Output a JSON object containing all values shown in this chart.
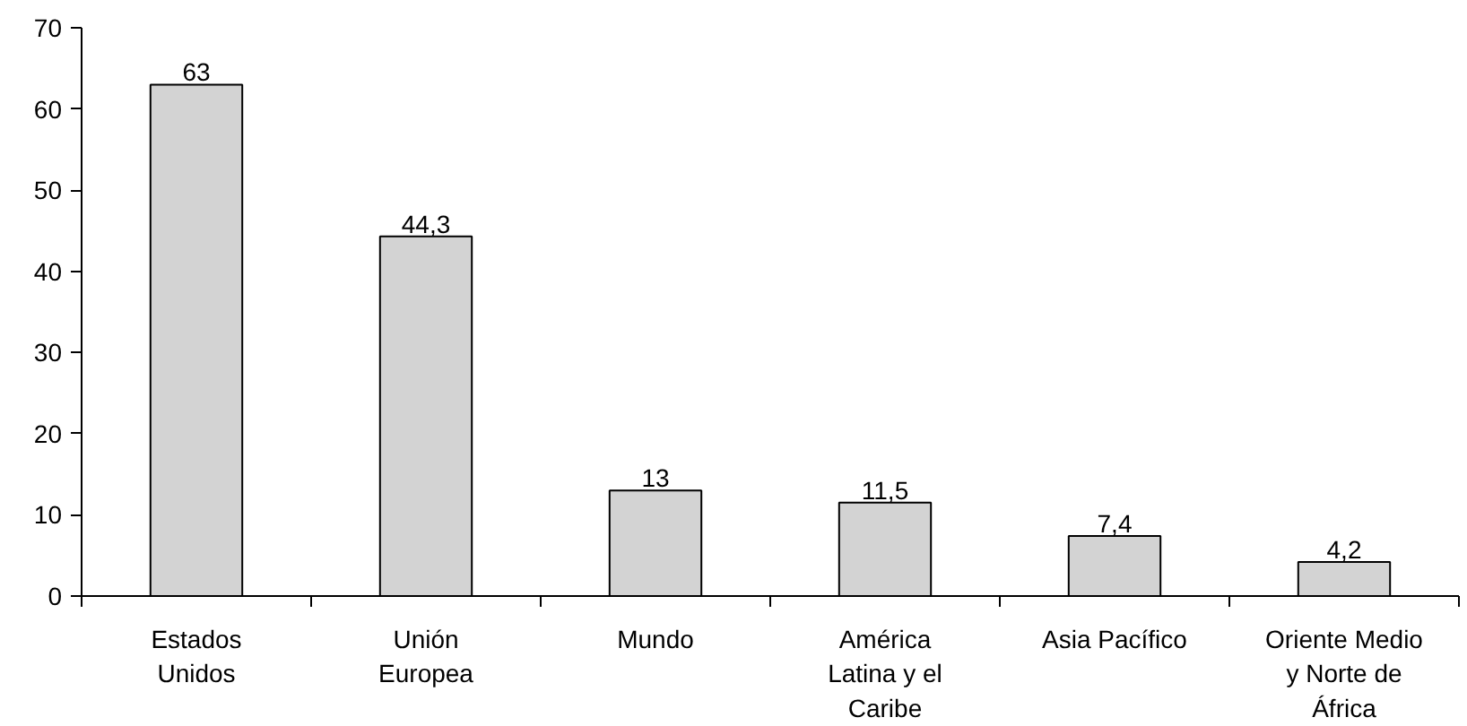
{
  "chart_data": {
    "type": "bar",
    "categories": [
      "Estados\nUnidos",
      "Unión\nEuropea",
      "Mundo",
      "América\nLatina y el\nCaribe",
      "Asia Pacífico",
      "Oriente Medio\ny Norte de\nÁfrica"
    ],
    "values": [
      63,
      44.3,
      13,
      11.5,
      7.4,
      4.2
    ],
    "value_labels": [
      "63",
      "44,3",
      "13",
      "11,5",
      "7,4",
      "4,2"
    ],
    "color": "#d3d3d3",
    "ylim": [
      0,
      70
    ],
    "yticks": [
      0,
      10,
      20,
      30,
      40,
      50,
      60,
      70
    ],
    "grid": false
  }
}
